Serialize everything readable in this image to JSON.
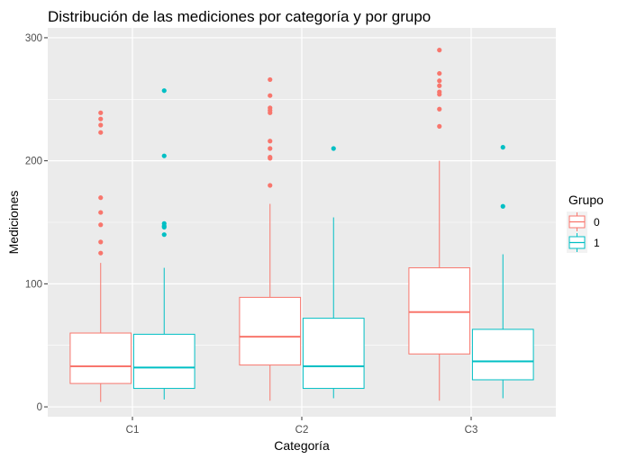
{
  "chart_data": {
    "type": "boxplot",
    "title": "Distribución de las mediciones por categoría y por grupo",
    "xlabel": "Categoría",
    "ylabel": "Mediciones",
    "categories": [
      "C1",
      "C2",
      "C3"
    ],
    "ylim": [
      -8,
      308
    ],
    "y_ticks": [
      0,
      100,
      200,
      300
    ],
    "grid": true,
    "legend": {
      "title": "Grupo",
      "position": "right"
    },
    "series": [
      {
        "name": "0",
        "color": "#F8766D",
        "boxes": [
          {
            "category": "C1",
            "min": 4,
            "q1": 19,
            "median": 33,
            "q3": 60,
            "max": 117,
            "outliers": [
              125,
              134,
              148,
              158,
              170,
              223,
              229,
              234,
              239
            ]
          },
          {
            "category": "C2",
            "min": 5,
            "q1": 34,
            "median": 57,
            "q3": 89,
            "max": 165,
            "outliers": [
              180,
              202,
              203,
              210,
              216,
              239,
              241,
              243,
              253,
              266
            ]
          },
          {
            "category": "C3",
            "min": 5,
            "q1": 43,
            "median": 77,
            "q3": 113,
            "max": 200,
            "outliers": [
              228,
              242,
              254,
              256,
              261,
              265,
              271,
              290
            ]
          }
        ]
      },
      {
        "name": "1",
        "color": "#00BFC4",
        "boxes": [
          {
            "category": "C1",
            "min": 6,
            "q1": 15,
            "median": 32,
            "q3": 59,
            "max": 113,
            "outliers": [
              140,
              146,
              147,
              149,
              204,
              257
            ]
          },
          {
            "category": "C2",
            "min": 7,
            "q1": 15,
            "median": 33,
            "q3": 72,
            "max": 154,
            "outliers": [
              210
            ]
          },
          {
            "category": "C3",
            "min": 7,
            "q1": 22,
            "median": 37,
            "q3": 63,
            "max": 124,
            "outliers": [
              163,
              211
            ]
          }
        ]
      }
    ]
  }
}
